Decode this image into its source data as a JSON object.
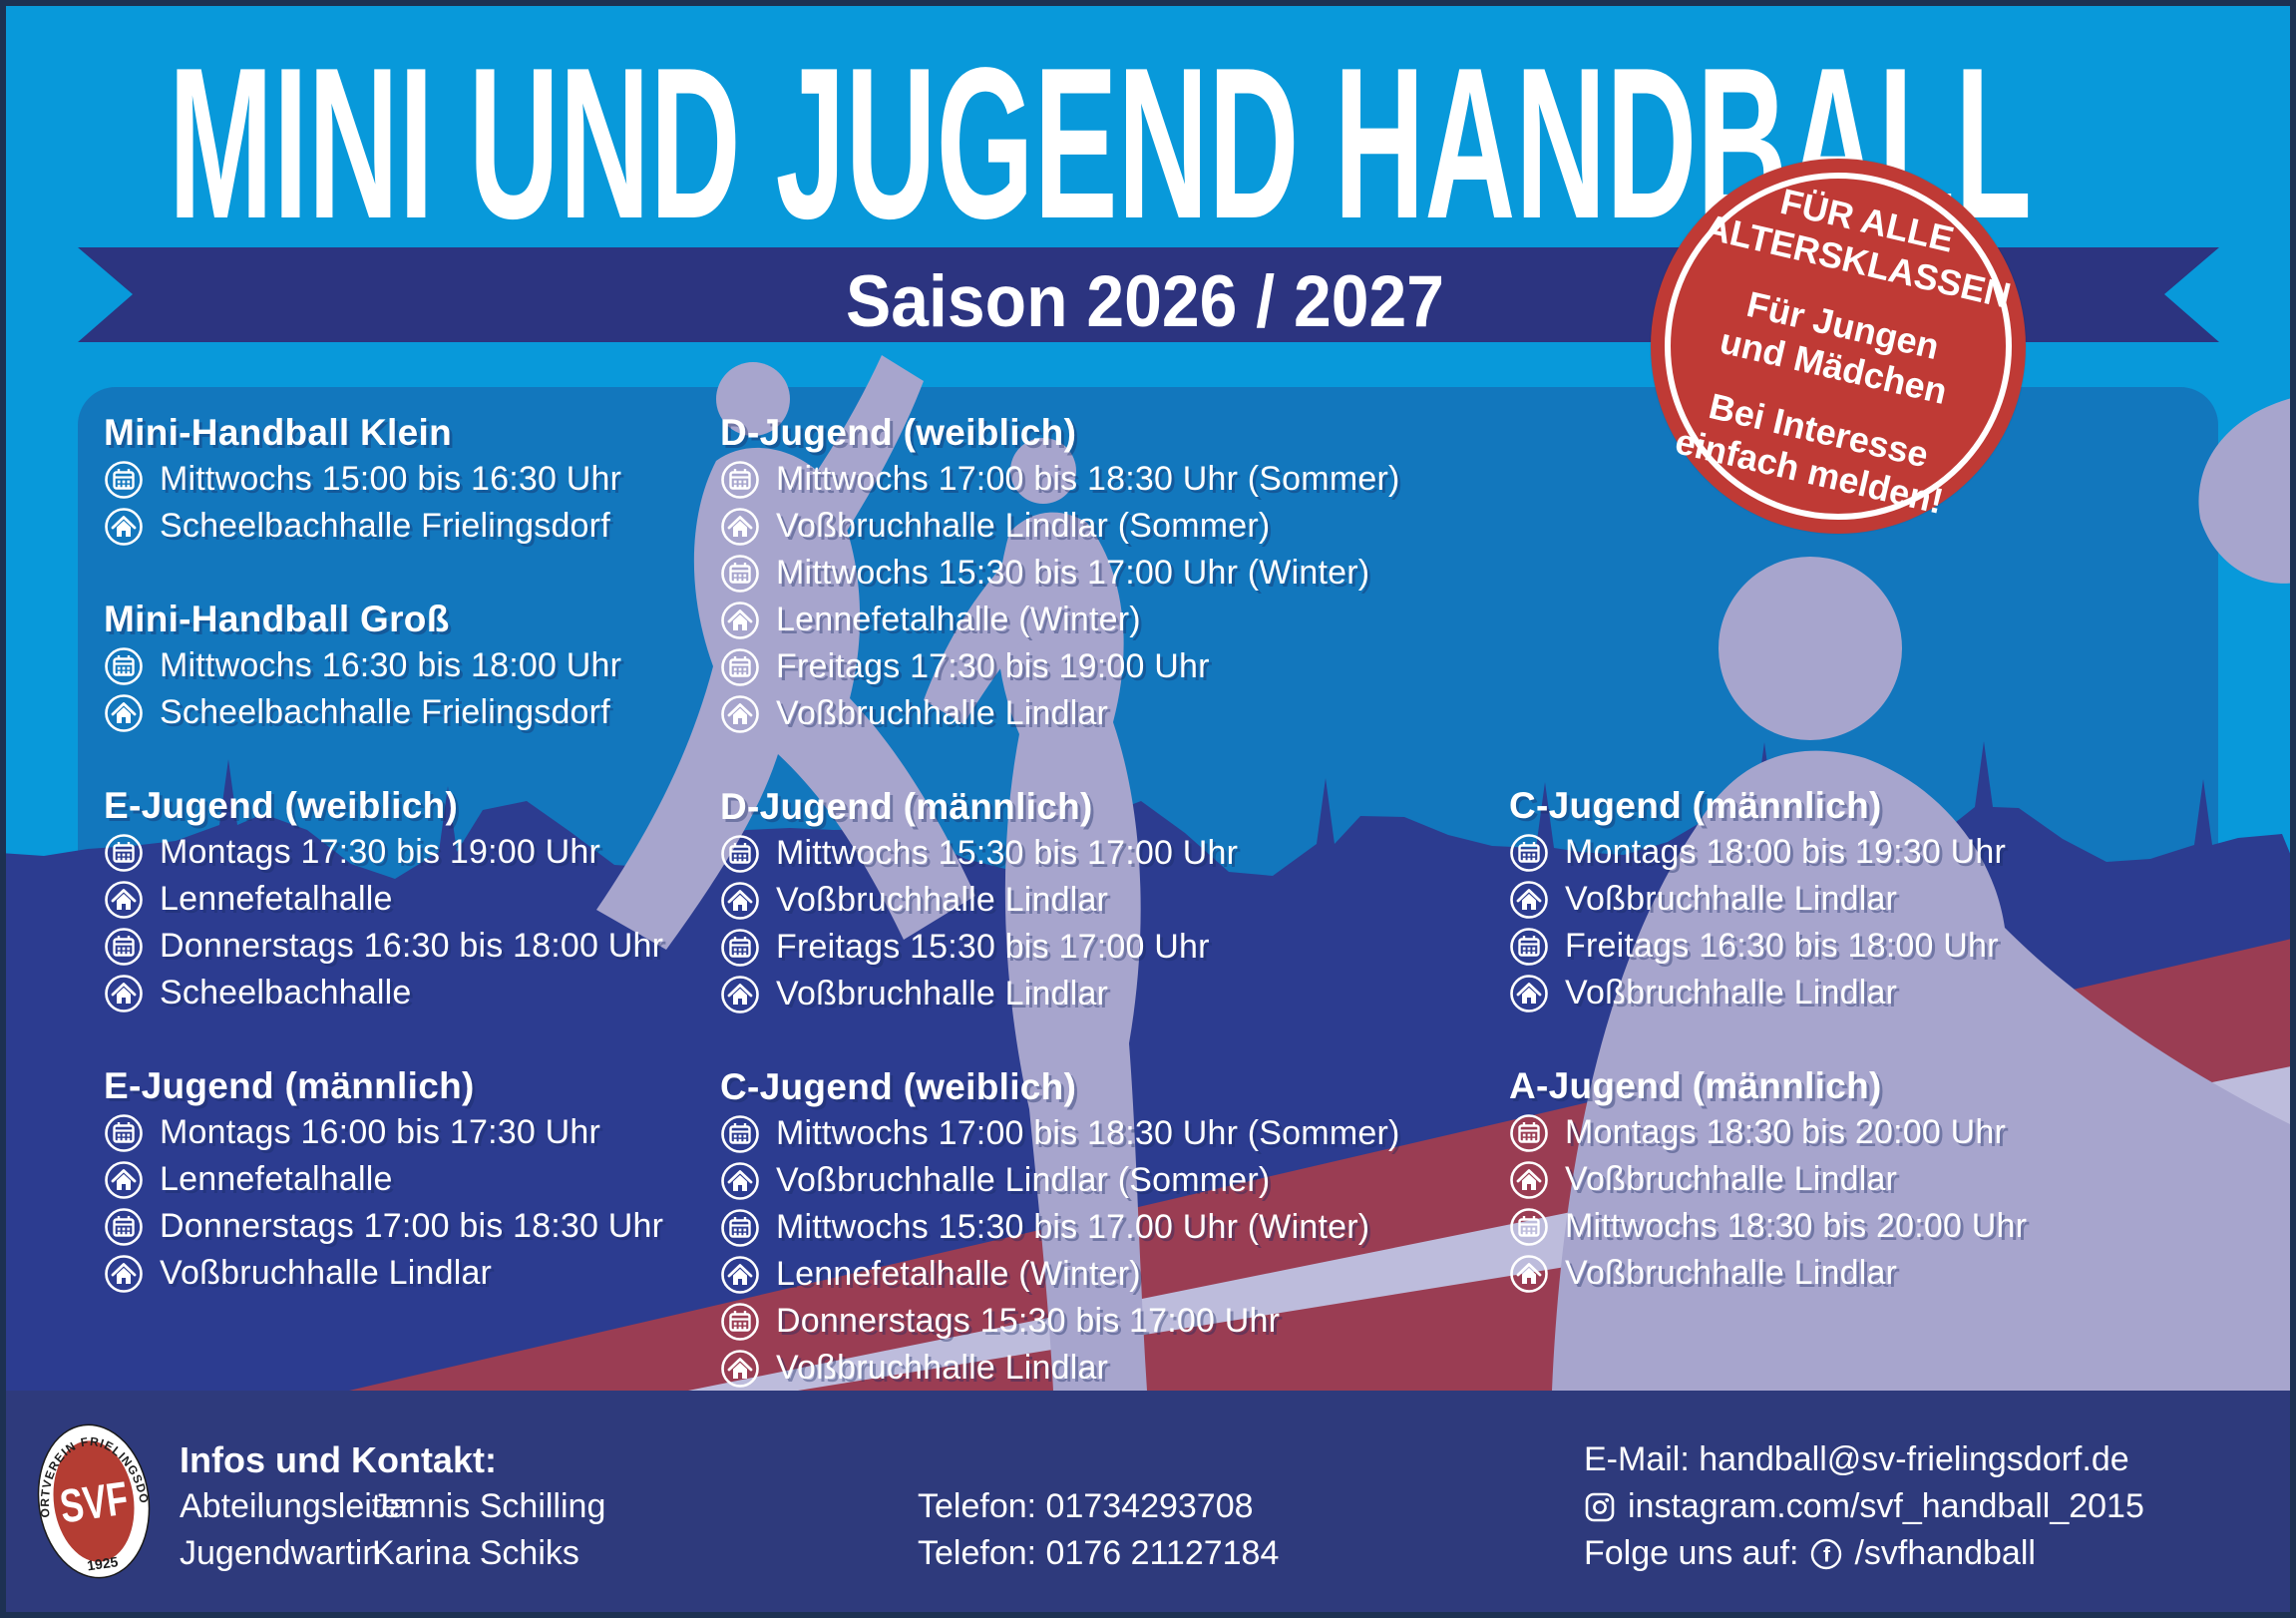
{
  "poster": {
    "title": "MINI UND JUGEND HANDBALL",
    "season": "Saison 2026 / 2027"
  },
  "badge": {
    "lines": [
      "FÜR ALLE",
      "ALTERSKLASSEN",
      "Für Jungen",
      "und Mädchen",
      "Bei Interesse",
      "einfach melden!"
    ]
  },
  "schedule": {
    "blocks": [
      {
        "title": "Mini-Handball Klein",
        "rows": [
          {
            "icon": "calendar-icon",
            "text": "Mittwochs 15:00 bis 16:30 Uhr"
          },
          {
            "icon": "home-icon",
            "text": "Scheelbachhalle Frielingsdorf"
          }
        ]
      },
      {
        "title": "Mini-Handball Groß",
        "rows": [
          {
            "icon": "calendar-icon",
            "text": "Mittwochs 16:30 bis 18:00 Uhr"
          },
          {
            "icon": "home-icon",
            "text": "Scheelbachhalle Frielingsdorf"
          }
        ]
      },
      {
        "title": "E-Jugend (weiblich)",
        "rows": [
          {
            "icon": "calendar-icon",
            "text": "Montags 17:30 bis 19:00 Uhr"
          },
          {
            "icon": "home-icon",
            "text": "Lennefetalhalle"
          },
          {
            "icon": "calendar-icon",
            "text": "Donnerstags 16:30 bis 18:00 Uhr"
          },
          {
            "icon": "home-icon",
            "text": "Scheelbachhalle"
          }
        ]
      },
      {
        "title": "E-Jugend (männlich)",
        "rows": [
          {
            "icon": "calendar-icon",
            "text": "Montags 16:00 bis 17:30 Uhr"
          },
          {
            "icon": "home-icon",
            "text": "Lennefetalhalle"
          },
          {
            "icon": "calendar-icon",
            "text": "Donnerstags 17:00 bis 18:30 Uhr"
          },
          {
            "icon": "home-icon",
            "text": "Voßbruchhalle Lindlar"
          }
        ]
      },
      {
        "title": "D-Jugend (weiblich)",
        "rows": [
          {
            "icon": "calendar-icon",
            "text": "Mittwochs 17:00 bis 18:30 Uhr (Sommer)"
          },
          {
            "icon": "home-icon",
            "text": "Voßbruchhalle Lindlar (Sommer)"
          },
          {
            "icon": "calendar-icon",
            "text": "Mittwochs 15:30 bis 17:00 Uhr (Winter)"
          },
          {
            "icon": "home-icon",
            "text": "Lennefetalhalle (Winter)"
          },
          {
            "icon": "calendar-icon",
            "text": "Freitags 17:30 bis 19:00 Uhr"
          },
          {
            "icon": "home-icon",
            "text": "Voßbruchhalle Lindlar"
          }
        ]
      },
      {
        "title": "D-Jugend (männlich)",
        "rows": [
          {
            "icon": "calendar-icon",
            "text": "Mittwochs 15:30 bis 17:00 Uhr"
          },
          {
            "icon": "home-icon",
            "text": "Voßbruchhalle Lindlar"
          },
          {
            "icon": "calendar-icon",
            "text": "Freitags 15:30 bis 17:00 Uhr"
          },
          {
            "icon": "home-icon",
            "text": "Voßbruchhalle Lindlar"
          }
        ]
      },
      {
        "title": "C-Jugend (weiblich)",
        "rows": [
          {
            "icon": "calendar-icon",
            "text": "Mittwochs 17:00 bis 18:30 Uhr (Sommer)"
          },
          {
            "icon": "home-icon",
            "text": "Voßbruchhalle Lindlar (Sommer)"
          },
          {
            "icon": "calendar-icon",
            "text": "Mittwochs 15:30 bis 17.00 Uhr (Winter)"
          },
          {
            "icon": "home-icon",
            "text": "Lennefetalhalle (Winter)"
          },
          {
            "icon": "calendar-icon",
            "text": "Donnerstags 15:30 bis 17:00 Uhr"
          },
          {
            "icon": "home-icon",
            "text": "Voßbruchhalle Lindlar"
          }
        ]
      },
      {
        "title": "C-Jugend (männlich)",
        "rows": [
          {
            "icon": "calendar-icon",
            "text": "Montags 18:00 bis 19:30 Uhr"
          },
          {
            "icon": "home-icon",
            "text": "Voßbruchhalle Lindlar"
          },
          {
            "icon": "calendar-icon",
            "text": "Freitags 16:30 bis 18:00 Uhr"
          },
          {
            "icon": "home-icon",
            "text": "Voßbruchhalle Lindlar"
          }
        ]
      },
      {
        "title": "A-Jugend (männlich)",
        "rows": [
          {
            "icon": "calendar-icon",
            "text": "Montags 18:30 bis 20:00 Uhr"
          },
          {
            "icon": "home-icon",
            "text": "Voßbruchhalle Lindlar"
          },
          {
            "icon": "calendar-icon",
            "text": "Mittwochs 18:30 bis 20:00 Uhr"
          },
          {
            "icon": "home-icon",
            "text": "Voßbruchhalle Lindlar"
          }
        ]
      }
    ]
  },
  "footer": {
    "logo": {
      "org": "SPORTVEREIN FRIELINGSDORF",
      "abbr": "SVF",
      "year": "1925"
    },
    "contact_heading": "Infos und Kontakt:",
    "contacts": [
      {
        "role": "Abteilungsleiter",
        "name": "Jannis Schilling",
        "phone": "Telefon: 01734293708"
      },
      {
        "role": "Jugendwartin",
        "name": "Karina Schiks",
        "phone": "Telefon: 0176 21127184"
      }
    ],
    "email": "E-Mail: handball@sv-frielingsdorf.de",
    "instagram": "instagram.com/svf_handball_2015",
    "follow_label": "Folge uns auf:",
    "facebook_handle": "/svfhandball"
  },
  "colors": {
    "sky_blue": "#0899da",
    "panel_blue": "#1277bd",
    "ribbon_navy": "#2c3480",
    "crowd_navy": "#2c3c90",
    "footer_navy": "#2e3a7c",
    "badge_red": "#bf3a35",
    "maroon": "#9a3d53",
    "lavender": "#a7a5cd",
    "lavender_light": "#bdbcdc",
    "text": "#ffffff"
  },
  "icons": {
    "schedule_day": "calendar-icon",
    "schedule_venue": "home-icon",
    "instagram": "instagram-icon",
    "facebook": "facebook-icon"
  }
}
